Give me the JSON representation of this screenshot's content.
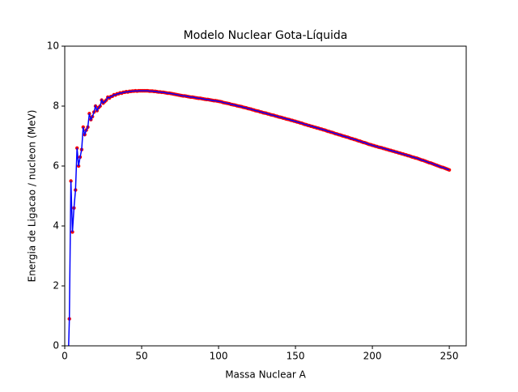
{
  "chart_data": {
    "type": "line",
    "title": "Modelo Nuclear Gota-Líquida",
    "xlabel": "Massa Nuclear A",
    "ylabel": "Energia de Ligacao / nucleon (MeV)",
    "xlim": [
      0,
      261
    ],
    "ylim": [
      0,
      10
    ],
    "xticks": [
      0,
      50,
      100,
      150,
      200,
      250
    ],
    "yticks": [
      0,
      2,
      4,
      6,
      8,
      10
    ],
    "x": [
      2,
      3,
      4,
      5,
      6,
      7,
      8,
      9,
      10,
      11,
      12,
      13,
      14,
      15,
      16,
      17,
      18,
      19,
      20,
      21,
      22,
      23,
      24,
      25,
      26,
      27,
      28,
      29,
      30,
      31,
      32,
      33,
      34,
      35,
      36,
      37,
      38,
      39,
      40,
      41,
      42,
      43,
      44,
      45,
      46,
      47,
      48,
      49,
      50,
      51,
      52,
      53,
      54,
      55,
      56,
      57,
      58,
      59,
      60,
      61,
      62,
      63,
      64,
      65,
      66,
      67,
      68,
      69,
      70,
      71,
      72,
      73,
      74,
      75,
      76,
      77,
      78,
      79,
      80,
      81,
      82,
      83,
      84,
      85,
      86,
      87,
      88,
      89,
      90,
      91,
      92,
      93,
      94,
      95,
      96,
      97,
      98,
      99,
      100,
      101,
      102,
      103,
      104,
      105,
      106,
      107,
      108,
      109,
      110,
      111,
      112,
      113,
      114,
      115,
      116,
      117,
      118,
      119,
      120,
      121,
      122,
      123,
      124,
      125,
      126,
      127,
      128,
      129,
      130,
      131,
      132,
      133,
      134,
      135,
      136,
      137,
      138,
      139,
      140,
      141,
      142,
      143,
      144,
      145,
      146,
      147,
      148,
      149,
      150,
      151,
      152,
      153,
      154,
      155,
      156,
      157,
      158,
      159,
      160,
      161,
      162,
      163,
      164,
      165,
      166,
      167,
      168,
      169,
      170,
      171,
      172,
      173,
      174,
      175,
      176,
      177,
      178,
      179,
      180,
      181,
      182,
      183,
      184,
      185,
      186,
      187,
      188,
      189,
      190,
      191,
      192,
      193,
      194,
      195,
      196,
      197,
      198,
      199,
      200,
      201,
      202,
      203,
      204,
      205,
      206,
      207,
      208,
      209,
      210,
      211,
      212,
      213,
      214,
      215,
      216,
      217,
      218,
      219,
      220,
      221,
      222,
      223,
      224,
      225,
      226,
      227,
      228,
      229,
      230,
      231,
      232,
      233,
      234,
      235,
      236,
      237,
      238,
      239,
      240,
      241,
      242,
      243,
      244,
      245,
      246,
      247,
      248,
      249,
      250
    ],
    "series": [
      {
        "marker_color": "#ff0000",
        "color": "#0000ff",
        "values": [
          -1,
          0.9,
          5.5,
          3.8,
          4.6,
          5.2,
          6.6,
          6.0,
          6.3,
          6.55,
          7.3,
          7.05,
          7.2,
          7.3,
          7.75,
          7.55,
          7.65,
          7.8,
          8.0,
          7.85,
          7.95,
          8.0,
          8.2,
          8.1,
          8.15,
          8.2,
          8.3,
          8.27,
          8.32,
          8.33,
          8.38,
          8.37,
          8.41,
          8.41,
          8.44,
          8.43,
          8.46,
          8.46,
          8.48,
          8.47,
          8.49,
          8.49,
          8.5,
          8.5,
          8.51,
          8.5,
          8.51,
          8.51,
          8.51,
          8.51,
          8.51,
          8.51,
          8.51,
          8.5,
          8.5,
          8.5,
          8.49,
          8.49,
          8.48,
          8.47,
          8.47,
          8.46,
          8.46,
          8.45,
          8.44,
          8.43,
          8.43,
          8.42,
          8.41,
          8.4,
          8.39,
          8.38,
          8.37,
          8.36,
          8.35,
          8.34,
          8.34,
          8.33,
          8.32,
          8.31,
          8.3,
          8.3,
          8.29,
          8.28,
          8.27,
          8.26,
          8.26,
          8.25,
          8.24,
          8.23,
          8.22,
          8.22,
          8.21,
          8.2,
          8.19,
          8.18,
          8.18,
          8.17,
          8.16,
          8.15,
          8.14,
          8.12,
          8.11,
          8.1,
          8.09,
          8.08,
          8.06,
          8.05,
          8.04,
          8.03,
          8.01,
          8.0,
          7.99,
          7.98,
          7.96,
          7.95,
          7.94,
          7.92,
          7.91,
          7.9,
          7.88,
          7.87,
          7.85,
          7.84,
          7.83,
          7.81,
          7.8,
          7.78,
          7.77,
          7.76,
          7.74,
          7.73,
          7.71,
          7.7,
          7.69,
          7.67,
          7.66,
          7.64,
          7.63,
          7.62,
          7.6,
          7.59,
          7.57,
          7.56,
          7.55,
          7.53,
          7.52,
          7.5,
          7.49,
          7.47,
          7.46,
          7.44,
          7.43,
          7.41,
          7.39,
          7.38,
          7.36,
          7.35,
          7.33,
          7.32,
          7.3,
          7.29,
          7.27,
          7.26,
          7.24,
          7.23,
          7.21,
          7.2,
          7.18,
          7.16,
          7.15,
          7.13,
          7.12,
          7.1,
          7.08,
          7.07,
          7.05,
          7.04,
          7.02,
          7.0,
          6.99,
          6.97,
          6.96,
          6.94,
          6.92,
          6.91,
          6.89,
          6.88,
          6.86,
          6.84,
          6.83,
          6.81,
          6.79,
          6.78,
          6.76,
          6.74,
          6.72,
          6.71,
          6.69,
          6.68,
          6.66,
          6.65,
          6.63,
          6.62,
          6.61,
          6.59,
          6.58,
          6.56,
          6.55,
          6.53,
          6.52,
          6.5,
          6.49,
          6.47,
          6.46,
          6.44,
          6.43,
          6.41,
          6.4,
          6.38,
          6.37,
          6.35,
          6.34,
          6.32,
          6.3,
          6.29,
          6.27,
          6.26,
          6.24,
          6.22,
          6.2,
          6.19,
          6.17,
          6.15,
          6.13,
          6.11,
          6.1,
          6.08,
          6.06,
          6.04,
          6.02,
          6.0,
          5.98,
          5.96,
          5.95,
          5.93,
          5.91,
          5.89,
          5.87
        ]
      }
    ]
  }
}
